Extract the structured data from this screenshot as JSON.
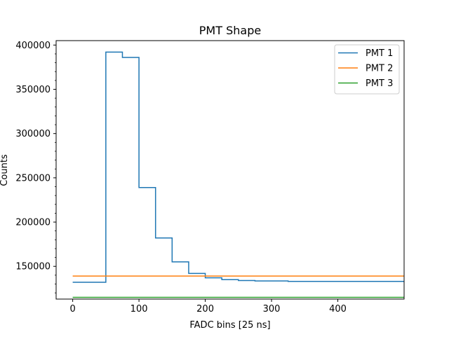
{
  "chart_data": {
    "type": "line",
    "title": "PMT Shape",
    "xlabel": "FADC bins [25 ns]",
    "ylabel": "Counts",
    "xlim": [
      -25,
      500
    ],
    "ylim": [
      113000,
      405000
    ],
    "xticks": [
      0,
      100,
      200,
      300,
      400
    ],
    "yticks": [
      150000,
      200000,
      250000,
      300000,
      350000,
      400000
    ],
    "grid": false,
    "legend_position": "top-right",
    "step_width": 25,
    "x": [
      0,
      25,
      50,
      75,
      100,
      125,
      150,
      175,
      200,
      225,
      250,
      275,
      300,
      325,
      350,
      375,
      400,
      425,
      450,
      475
    ],
    "series": [
      {
        "name": "PMT 1",
        "color": "#1f77b4",
        "values": [
          132000,
          132000,
          392000,
          386000,
          239000,
          182000,
          155000,
          142000,
          137000,
          135000,
          134000,
          133500,
          133500,
          133000,
          133000,
          133000,
          133000,
          133000,
          133000,
          133000
        ]
      },
      {
        "name": "PMT 2",
        "color": "#ff7f0e",
        "values": [
          139000,
          139000,
          139000,
          139000,
          139000,
          139000,
          139000,
          139000,
          139000,
          139000,
          139000,
          139000,
          139000,
          139000,
          139000,
          139000,
          139000,
          139000,
          139000,
          139000
        ]
      },
      {
        "name": "PMT 3",
        "color": "#2ca02c",
        "values": [
          115000,
          115000,
          115000,
          115000,
          115000,
          115000,
          115000,
          115000,
          115000,
          115000,
          115000,
          115000,
          115000,
          115000,
          115000,
          115000,
          115000,
          115000,
          115000,
          115000
        ]
      }
    ]
  }
}
